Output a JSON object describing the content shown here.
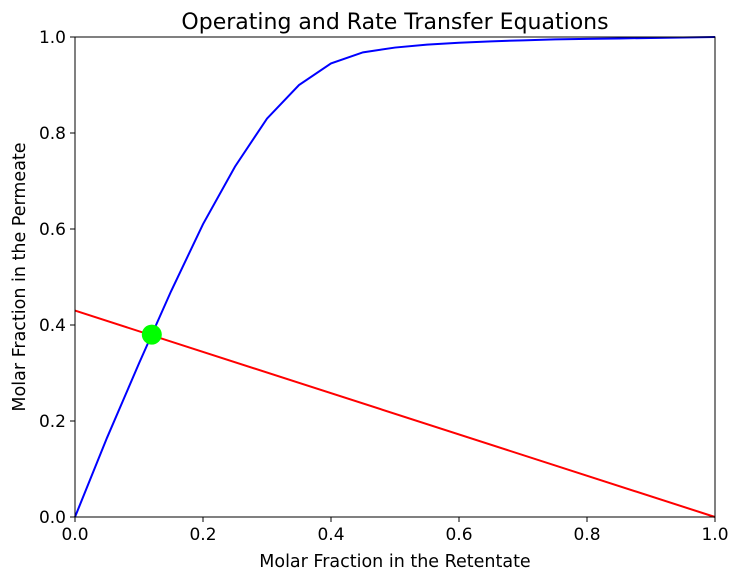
{
  "chart_data": {
    "type": "line",
    "title": "Operating and Rate Transfer Equations",
    "xlabel": "Molar Fraction in the Retentate",
    "ylabel": "Molar Fraction in the Permeate",
    "xlim": [
      0.0,
      1.0
    ],
    "ylim": [
      0.0,
      1.0
    ],
    "xticks": [
      "0.0",
      "0.2",
      "0.4",
      "0.6",
      "0.8",
      "1.0"
    ],
    "yticks": [
      "0.0",
      "0.2",
      "0.4",
      "0.6",
      "0.8",
      "1.0"
    ],
    "grid": false,
    "series": [
      {
        "color": "#0000ff",
        "points": [
          [
            0.0,
            0.0
          ],
          [
            0.05,
            0.165
          ],
          [
            0.1,
            0.32
          ],
          [
            0.15,
            0.47
          ],
          [
            0.2,
            0.61
          ],
          [
            0.25,
            0.73
          ],
          [
            0.3,
            0.83
          ],
          [
            0.35,
            0.9
          ],
          [
            0.4,
            0.945
          ],
          [
            0.45,
            0.968
          ],
          [
            0.5,
            0.978
          ],
          [
            0.55,
            0.984
          ],
          [
            0.6,
            0.988
          ],
          [
            0.65,
            0.991
          ],
          [
            0.7,
            0.993
          ],
          [
            0.75,
            0.995
          ],
          [
            0.8,
            0.996
          ],
          [
            0.85,
            0.997
          ],
          [
            0.9,
            0.998
          ],
          [
            0.95,
            0.999
          ],
          [
            1.0,
            1.0
          ]
        ]
      },
      {
        "color": "#ff0000",
        "points": [
          [
            0.0,
            0.43
          ],
          [
            1.0,
            0.0
          ]
        ]
      }
    ],
    "markers": [
      {
        "x": 0.12,
        "y": 0.38,
        "color": "#00ff00"
      }
    ]
  }
}
